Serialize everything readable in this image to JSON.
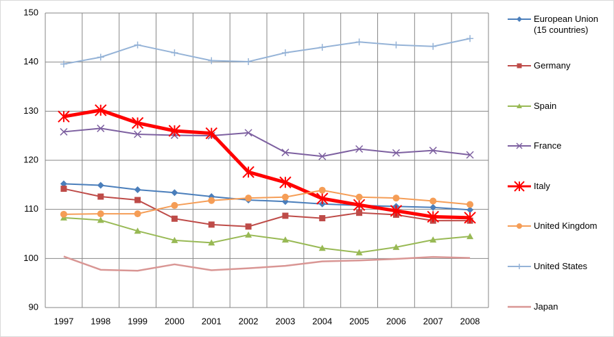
{
  "chart_data": {
    "type": "line",
    "categories": [
      "1997",
      "1998",
      "1999",
      "2000",
      "2001",
      "2002",
      "2003",
      "2004",
      "2005",
      "2006",
      "2007",
      "2008"
    ],
    "ylim": [
      90,
      150
    ],
    "yticks": [
      90,
      100,
      110,
      120,
      130,
      140,
      150
    ],
    "grid": true,
    "legend": "right",
    "series": [
      {
        "name": "European Union (15 countries)",
        "color": "#4a7ebb",
        "marker": "diamond",
        "width": 2,
        "values": [
          115.2,
          114.9,
          114.0,
          113.4,
          112.6,
          111.9,
          111.6,
          111.1,
          110.8,
          110.6,
          110.4,
          109.9
        ]
      },
      {
        "name": "Germany",
        "color": "#be4b48",
        "marker": "square",
        "width": 2,
        "values": [
          114.2,
          112.6,
          111.9,
          108.1,
          106.9,
          106.5,
          108.7,
          108.2,
          109.3,
          108.9,
          107.7,
          107.7
        ]
      },
      {
        "name": "Spain",
        "color": "#98b954",
        "marker": "triangle",
        "width": 2,
        "values": [
          108.3,
          107.8,
          105.6,
          103.7,
          103.2,
          104.8,
          103.8,
          102.1,
          101.2,
          102.3,
          103.8,
          104.5
        ]
      },
      {
        "name": "France",
        "color": "#7d60a0",
        "marker": "x",
        "width": 2,
        "values": [
          125.8,
          126.5,
          125.3,
          125.1,
          125.0,
          125.6,
          121.6,
          120.8,
          122.3,
          121.5,
          122.0,
          121.1
        ]
      },
      {
        "name": "Italy",
        "color": "#ff0000",
        "marker": "star",
        "width": 5,
        "values": [
          128.9,
          130.2,
          127.6,
          126.0,
          125.5,
          117.6,
          115.5,
          112.2,
          110.9,
          109.7,
          108.5,
          108.3
        ]
      },
      {
        "name": "United Kingdom",
        "color": "#f59d56",
        "marker": "circle",
        "width": 2,
        "values": [
          109.0,
          109.1,
          109.1,
          110.8,
          111.8,
          112.3,
          112.5,
          113.9,
          112.5,
          112.3,
          111.7,
          111.0
        ]
      },
      {
        "name": "United States",
        "color": "#95b3d7",
        "marker": "plus",
        "width": 2,
        "values": [
          139.6,
          141.0,
          143.5,
          141.9,
          140.3,
          140.1,
          141.9,
          143.0,
          144.1,
          143.5,
          143.2,
          144.8
        ]
      },
      {
        "name": "Japan",
        "color": "#d99694",
        "marker": "none",
        "width": 2.5,
        "values": [
          100.4,
          97.7,
          97.5,
          98.8,
          97.6,
          98.0,
          98.5,
          99.4,
          99.6,
          99.9,
          100.3,
          100.1
        ]
      }
    ]
  }
}
